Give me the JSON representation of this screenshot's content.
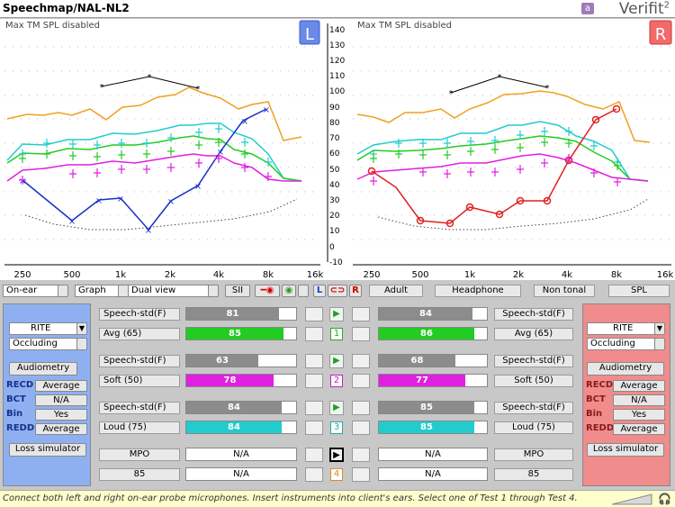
{
  "window": {
    "title": "Speechmap/NAL-NL2",
    "brand": "Verifit",
    "brand_sup": "2",
    "brand_logo": "a"
  },
  "charts": {
    "left": {
      "banner": "Max TM SPL disabled",
      "ear_label": "L"
    },
    "right": {
      "banner": "Max TM SPL disabled",
      "ear_label": "R"
    },
    "y_ticks": [
      "140",
      "130",
      "120",
      "110",
      "100",
      "90",
      "80",
      "70",
      "60",
      "50",
      "40",
      "30",
      "20",
      "10",
      "0",
      "-10"
    ],
    "x_ticks": [
      "250",
      "500",
      "1k",
      "2k",
      "4k",
      "8k",
      "16k"
    ]
  },
  "toolbar": {
    "mode_select": "On-ear",
    "graph_select": "Graph",
    "view_select": "Dual view",
    "sii_button": "SII",
    "ear_l": "L",
    "ear_link": "⊂⊃",
    "ear_r": "R",
    "adult": "Adult",
    "transducer": "Headphone",
    "signal": "Non tonal",
    "units": "SPL"
  },
  "left_panel": {
    "style_select": "RITE",
    "fit_select": "Occluding",
    "audiometry_button": "Audiometry",
    "rows": [
      {
        "label": "RECD",
        "value": "Average"
      },
      {
        "label": "BCT",
        "value": "N/A"
      },
      {
        "label": "Bin",
        "value": "Yes"
      },
      {
        "label": "REDD",
        "value": "Average"
      }
    ],
    "loss_sim_button": "Loss simulator"
  },
  "right_panel": {
    "style_select": "RITE",
    "fit_select": "Occluding",
    "audiometry_button": "Audiometry",
    "rows": [
      {
        "label": "RECD",
        "value": "Average"
      },
      {
        "label": "BCT",
        "value": "N/A"
      },
      {
        "label": "Bin",
        "value": "Yes"
      },
      {
        "label": "REDD",
        "value": "Average"
      }
    ],
    "loss_sim_button": "Loss simulator"
  },
  "tests": [
    {
      "num": "1",
      "stim": "Speech-std(F)",
      "level": "Avg (65)",
      "l_top": "81",
      "l_bot": "85",
      "r_top": "84",
      "r_bot": "86",
      "color": "#22cc22",
      "l_top_pct": 0.84,
      "l_bot_pct": 0.88,
      "r_top_pct": 0.86,
      "r_bot_pct": 0.88
    },
    {
      "num": "2",
      "stim": "Speech-std(F)",
      "level": "Soft (50)",
      "l_top": "63",
      "l_bot": "78",
      "r_top": "68",
      "r_bot": "77",
      "color": "#e020e0",
      "l_top_pct": 0.66,
      "l_bot_pct": 0.8,
      "r_top_pct": 0.7,
      "r_bot_pct": 0.8
    },
    {
      "num": "3",
      "stim": "Speech-std(F)",
      "level": "Loud (75)",
      "l_top": "84",
      "l_bot": "84",
      "r_top": "85",
      "r_bot": "85",
      "color": "#22cccc",
      "l_top_pct": 0.86,
      "l_bot_pct": 0.86,
      "r_top_pct": 0.88,
      "r_bot_pct": 0.88
    },
    {
      "num": "4",
      "stim": "MPO",
      "level": "85",
      "l_top": "N/A",
      "l_bot": "N/A",
      "r_top": "N/A",
      "r_bot": "N/A"
    }
  ],
  "status": {
    "message": "Connect both left and right on-ear probe microphones.  Insert instruments into client's ears.  Select one of Test 1 through Test 4."
  }
}
